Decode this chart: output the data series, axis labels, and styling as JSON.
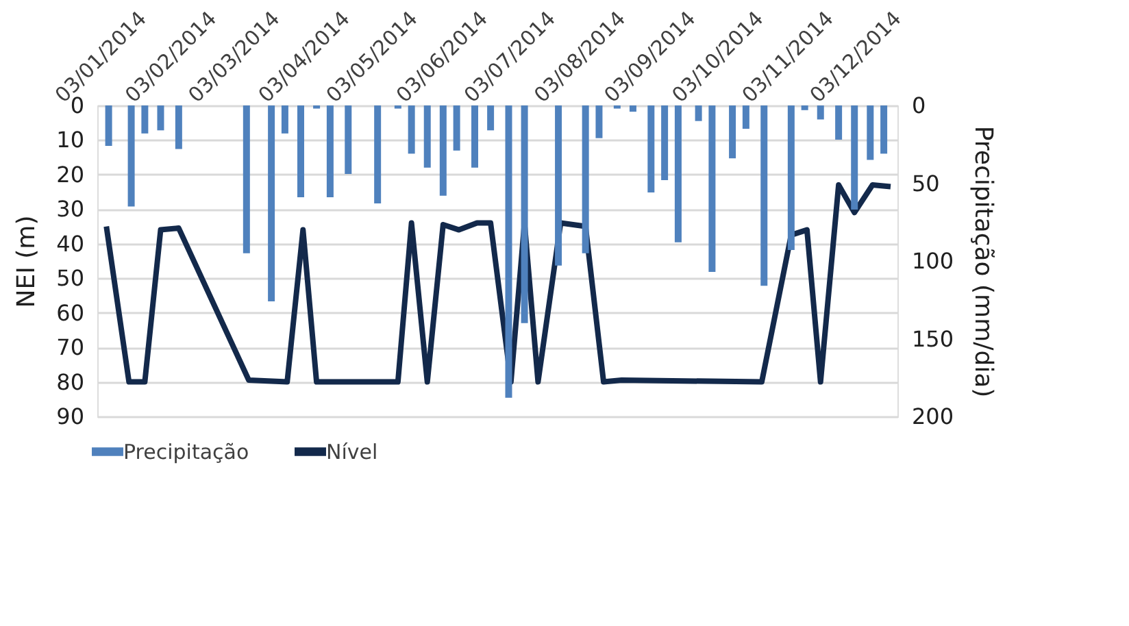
{
  "chart_data": {
    "type": "bar",
    "ylabel": "NEI (m)",
    "y2label": "Precipitação (mm/dia)",
    "xlim": [
      "2014-01-03",
      "2014-12-17"
    ],
    "xticks": [
      {
        "value": "2014-01-03",
        "label": "03/01/2014"
      },
      {
        "value": "2014-02-03",
        "label": "03/02/2014"
      },
      {
        "value": "2014-03-03",
        "label": "03/03/2014"
      },
      {
        "value": "2014-04-03",
        "label": "03/04/2014"
      },
      {
        "value": "2014-05-03",
        "label": "03/05/2014"
      },
      {
        "value": "2014-06-03",
        "label": "03/06/2014"
      },
      {
        "value": "2014-07-03",
        "label": "03/07/2014"
      },
      {
        "value": "2014-08-03",
        "label": "03/08/2014"
      },
      {
        "value": "2014-09-03",
        "label": "03/09/2014"
      },
      {
        "value": "2014-10-03",
        "label": "03/10/2014"
      },
      {
        "value": "2014-11-03",
        "label": "03/11/2014"
      },
      {
        "value": "2014-12-03",
        "label": "03/12/2014"
      }
    ],
    "ylim": [
      90,
      0
    ],
    "yticks": [
      0,
      10,
      20,
      30,
      40,
      50,
      60,
      70,
      80,
      90
    ],
    "y2lim": [
      200,
      0
    ],
    "y2ticks": [
      0,
      50,
      100,
      150,
      200
    ],
    "grid": "y",
    "legend": "bottom",
    "series": [
      {
        "name": "Precipitação",
        "axis": "y2",
        "color": "#4f81bd",
        "x": [
          "2014-01-05",
          "2014-01-15",
          "2014-01-21",
          "2014-01-28",
          "2014-02-05",
          "2014-03-07",
          "2014-03-18",
          "2014-03-24",
          "2014-03-31",
          "2014-04-07",
          "2014-04-13",
          "2014-04-21",
          "2014-05-04",
          "2014-05-13",
          "2014-05-19",
          "2014-05-26",
          "2014-06-02",
          "2014-06-08",
          "2014-06-16",
          "2014-06-23",
          "2014-07-01",
          "2014-07-08",
          "2014-07-23",
          "2014-08-04",
          "2014-08-10",
          "2014-08-18",
          "2014-08-25",
          "2014-09-02",
          "2014-09-08",
          "2014-09-14",
          "2014-09-23",
          "2014-09-29",
          "2014-10-08",
          "2014-10-14",
          "2014-10-22",
          "2014-11-03",
          "2014-11-09",
          "2014-11-16",
          "2014-11-24",
          "2014-12-01",
          "2014-12-08",
          "2014-12-14"
        ],
        "values": [
          26,
          65,
          18,
          16,
          28,
          95,
          126,
          18,
          59,
          2,
          59,
          44,
          63,
          2,
          31,
          40,
          58,
          29,
          40,
          16,
          188,
          140,
          103,
          95,
          21,
          2,
          4,
          56,
          48,
          88,
          10,
          107,
          34,
          15,
          116,
          93,
          3,
          9,
          22,
          67,
          35,
          31
        ]
      },
      {
        "name": "Nível",
        "type": "line",
        "color": "#13294b",
        "x": [
          "2014-01-04",
          "2014-01-14",
          "2014-01-21",
          "2014-01-28",
          "2014-02-05",
          "2014-03-08",
          "2014-03-25",
          "2014-04-01",
          "2014-04-07",
          "2014-05-13",
          "2014-05-19",
          "2014-05-26",
          "2014-06-02",
          "2014-06-09",
          "2014-06-17",
          "2014-06-23",
          "2014-07-02",
          "2014-07-08",
          "2014-07-14",
          "2014-07-24",
          "2014-08-04",
          "2014-08-12",
          "2014-08-20",
          "2014-10-21",
          "2014-11-03",
          "2014-11-10",
          "2014-11-16",
          "2014-11-24",
          "2014-12-01",
          "2014-12-09",
          "2014-12-17"
        ],
        "values": [
          35,
          80,
          80,
          36,
          35.5,
          79.5,
          80,
          36,
          80,
          80,
          34,
          80,
          34.5,
          36,
          34,
          34,
          80,
          34,
          80,
          34,
          35,
          80,
          79.5,
          80,
          37.5,
          36,
          80,
          23,
          31,
          23,
          23.5
        ]
      }
    ]
  }
}
